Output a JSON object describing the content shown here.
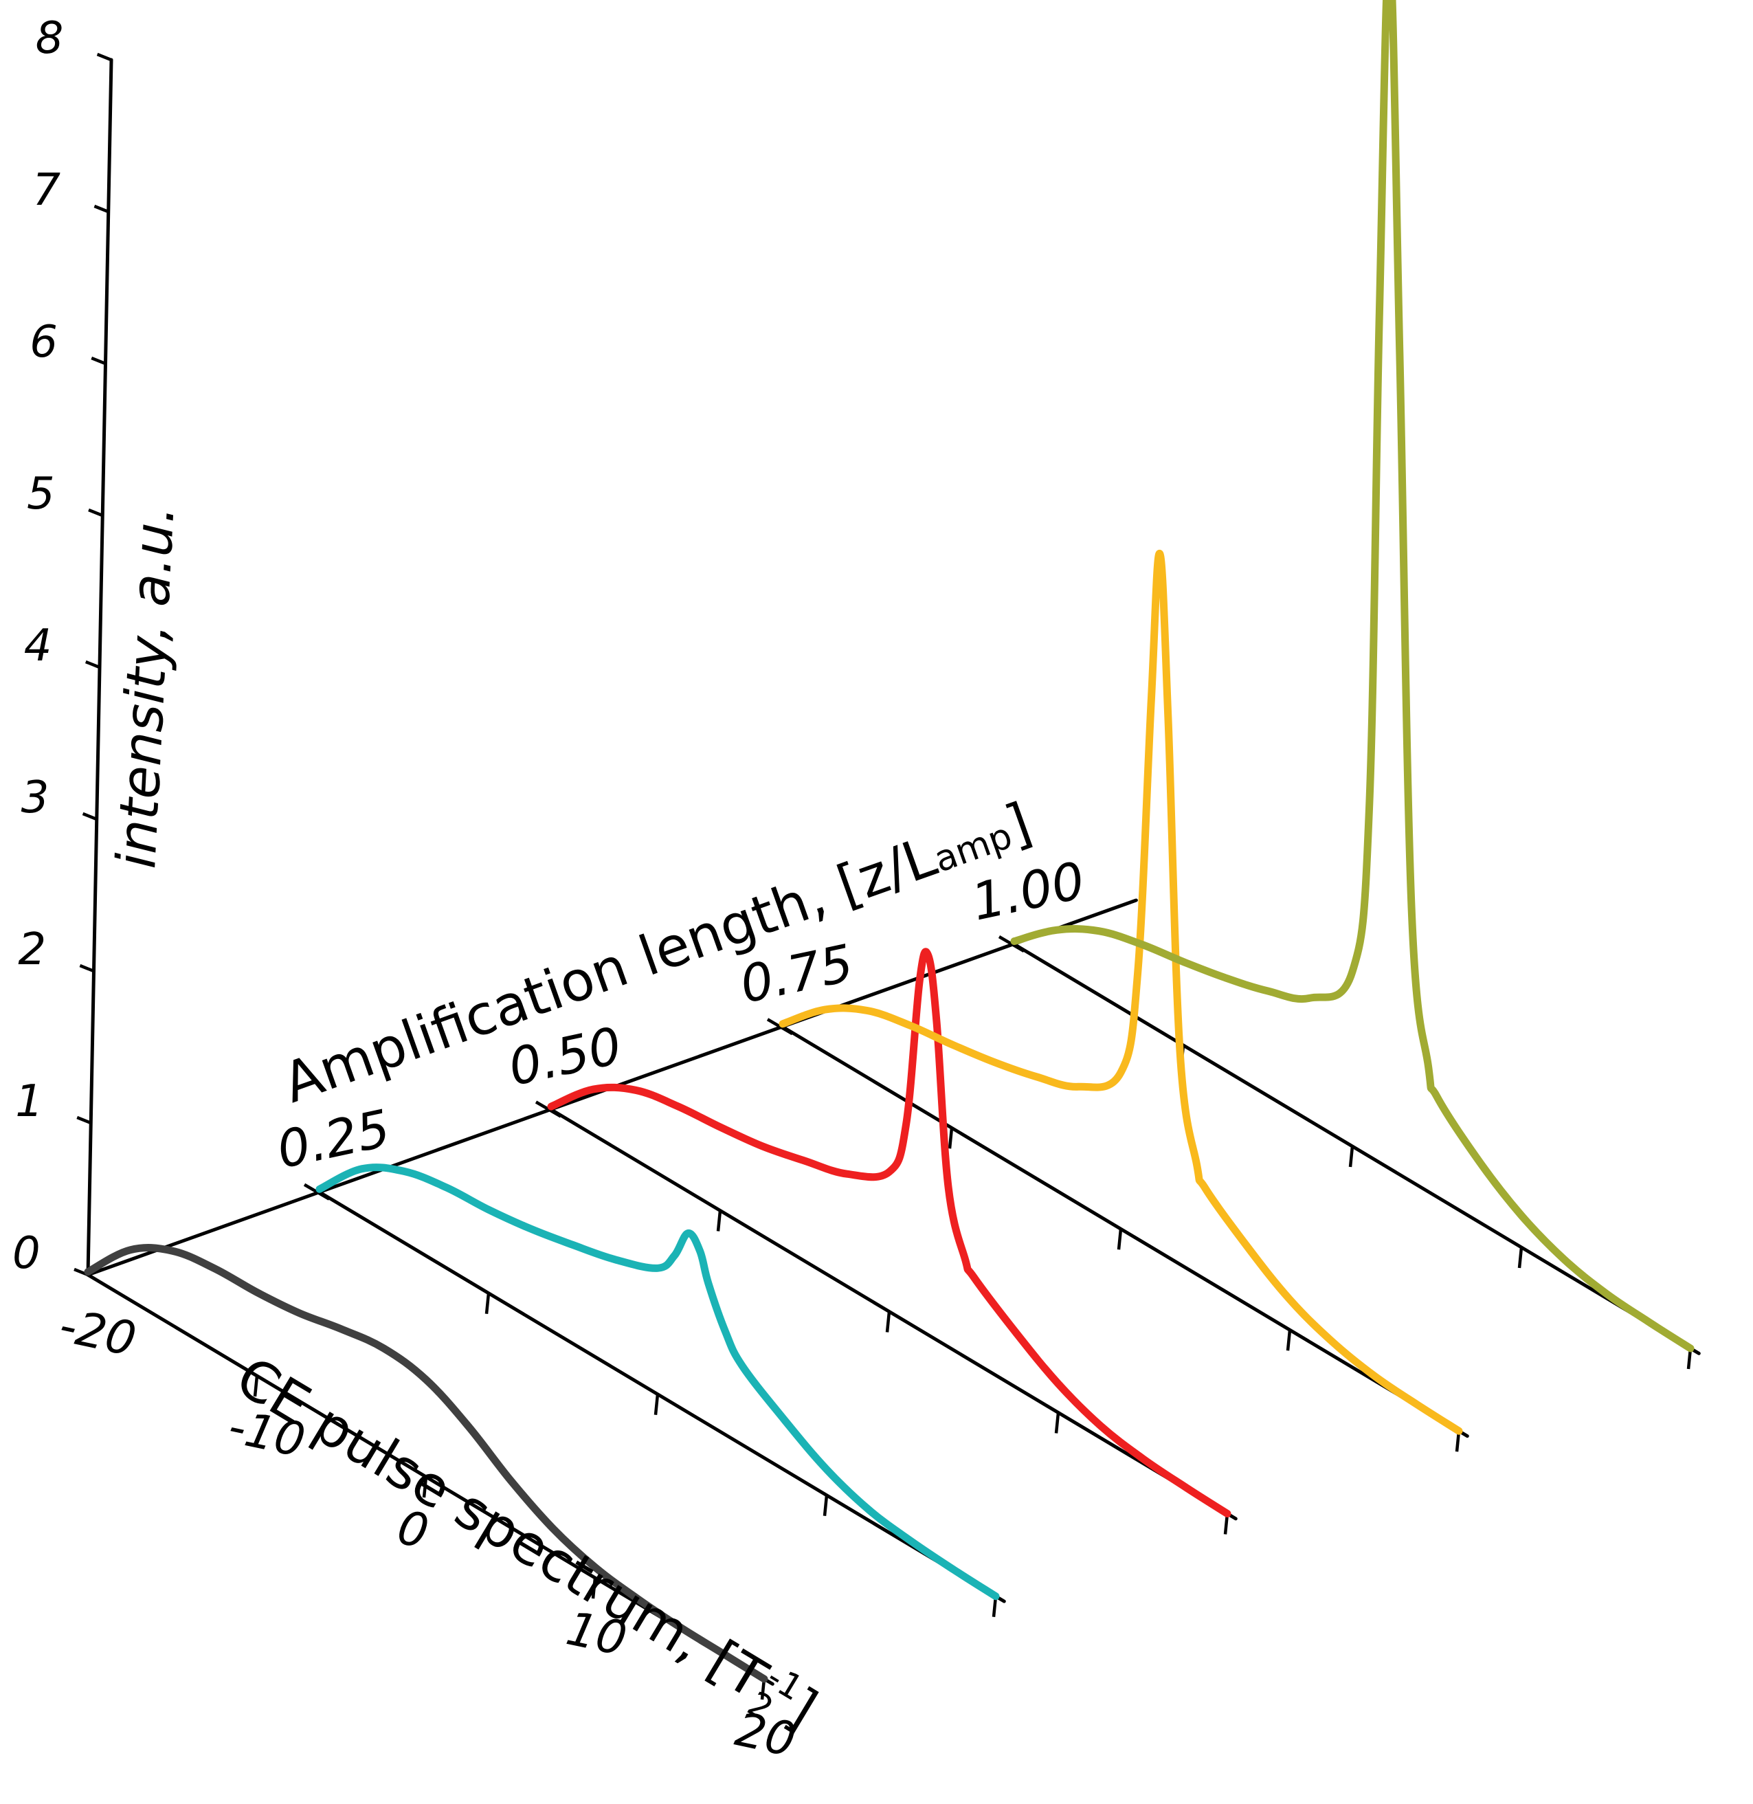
{
  "chart_data": {
    "type": "line",
    "projection": "3d-waterfall",
    "y_axis": {
      "title": "intensity, a.u.",
      "ylim": [
        0,
        8
      ],
      "ticks": [
        "0",
        "1",
        "2",
        "3",
        "4",
        "5",
        "6",
        "7",
        "8"
      ]
    },
    "x_axis": {
      "title_main": "CE pulse spectrum, [T",
      "title_sub": "2",
      "title_sup": "-1",
      "title_end": "]",
      "xlim": [
        -20,
        20
      ],
      "ticks": [
        "-20",
        "-10",
        "0",
        "10",
        "20"
      ]
    },
    "z_axis": {
      "title_main": "Amplification length, [z/L",
      "title_sub": "amp",
      "title_end": "]",
      "zlim": [
        0,
        1
      ],
      "ticks": [
        "0.25",
        "0.50",
        "0.75",
        "1.00"
      ]
    },
    "series": [
      {
        "name": "z/Lamp = 0",
        "z": 0.0,
        "color": "#404040",
        "x": [
          -20,
          -17.5,
          -15,
          -12.5,
          -10,
          -7.5,
          -5,
          -2.5,
          0,
          2.5,
          5,
          7.5,
          10,
          12.5,
          15,
          17.5,
          20
        ],
        "y": [
          0.02,
          0.33,
          0.49,
          0.54,
          0.55,
          0.58,
          0.64,
          0.68,
          0.64,
          0.5,
          0.31,
          0.16,
          0.07,
          0.03,
          0.01,
          0.005,
          0.0
        ]
      },
      {
        "name": "z/Lamp = 0.25",
        "z": 0.25,
        "color": "#1bb3b5",
        "x": [
          -20,
          -17.5,
          -15,
          -12.5,
          -10,
          -7.5,
          -5,
          -2.5,
          0,
          1,
          1.8,
          2.5,
          3,
          4,
          5,
          7.5,
          10,
          12.5,
          15,
          17.5,
          20
        ],
        "y": [
          0.02,
          0.32,
          0.47,
          0.53,
          0.55,
          0.59,
          0.65,
          0.72,
          0.83,
          0.98,
          1.18,
          1.11,
          0.93,
          0.68,
          0.52,
          0.33,
          0.17,
          0.07,
          0.03,
          0.01,
          0.0
        ]
      },
      {
        "name": "z/Lamp = 0.50",
        "z": 0.5,
        "color": "#ee2020",
        "x": [
          -20,
          -17.5,
          -15,
          -12.5,
          -10,
          -7.5,
          -5,
          -2.5,
          0,
          1,
          1.8,
          2.3,
          2.8,
          3.5,
          4.5,
          5,
          7.5,
          10,
          12.5,
          15,
          17.5,
          20
        ],
        "y": [
          0.02,
          0.3,
          0.46,
          0.52,
          0.55,
          0.59,
          0.66,
          0.74,
          0.92,
          1.3,
          2.3,
          2.5,
          2.1,
          1.05,
          0.64,
          0.56,
          0.36,
          0.19,
          0.08,
          0.03,
          0.01,
          0.0
        ]
      },
      {
        "name": "z/Lamp = 0.75",
        "z": 0.75,
        "color": "#f9b91d",
        "x": [
          -20,
          -17.5,
          -15,
          -12.5,
          -10,
          -7.5,
          -5,
          -2.5,
          0,
          1,
          1.8,
          2.3,
          2.8,
          3.5,
          4.5,
          5,
          7.5,
          10,
          12.5,
          15,
          17.5,
          20
        ],
        "y": [
          0.02,
          0.28,
          0.44,
          0.51,
          0.55,
          0.6,
          0.67,
          0.77,
          1.03,
          1.75,
          3.6,
          4.6,
          3.55,
          1.4,
          0.72,
          0.6,
          0.38,
          0.2,
          0.09,
          0.03,
          0.01,
          0.0
        ]
      },
      {
        "name": "z/Lamp = 1.00",
        "z": 1.0,
        "color": "#a1ab33",
        "x": [
          -20,
          -17.5,
          -15,
          -12.5,
          -10,
          -7.5,
          -5,
          -2.5,
          0,
          1,
          1.6,
          2.2,
          2.8,
          3.5,
          4.5,
          5,
          7.5,
          10,
          12.5,
          15,
          17.5,
          20
        ],
        "y": [
          0.02,
          0.26,
          0.42,
          0.5,
          0.55,
          0.61,
          0.69,
          0.81,
          1.15,
          2.3,
          5.6,
          8.0,
          5.4,
          1.8,
          0.82,
          0.66,
          0.4,
          0.21,
          0.09,
          0.03,
          0.01,
          0.0
        ]
      }
    ]
  }
}
